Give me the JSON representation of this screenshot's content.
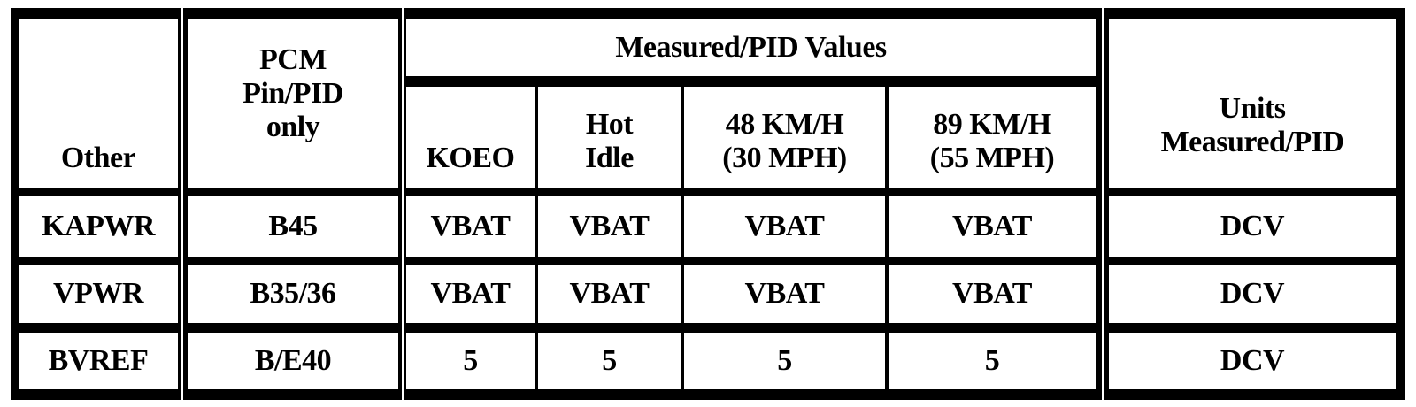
{
  "header": {
    "other": "Other",
    "pcm": "PCM\nPin/PID\nonly",
    "measured": "Measured/PID Values",
    "koeo": "KOEO",
    "hot_idle": "Hot\nIdle",
    "kmh48": "48 KM/H\n(30 MPH)",
    "kmh89": "89 KM/H\n(55 MPH)",
    "units": "Units\nMeasured/PID"
  },
  "rows": [
    {
      "other": "KAPWR",
      "pcm": "B45",
      "koeo": "VBAT",
      "hot_idle": "VBAT",
      "kmh48": "VBAT",
      "kmh89": "VBAT",
      "units": "DCV"
    },
    {
      "other": "VPWR",
      "pcm": "B35/36",
      "koeo": "VBAT",
      "hot_idle": "VBAT",
      "kmh48": "VBAT",
      "kmh89": "VBAT",
      "units": "DCV"
    },
    {
      "other": "BVREF",
      "pcm": "B/E40",
      "koeo": "5",
      "hot_idle": "5",
      "kmh48": "5",
      "kmh89": "5",
      "units": "DCV"
    }
  ]
}
